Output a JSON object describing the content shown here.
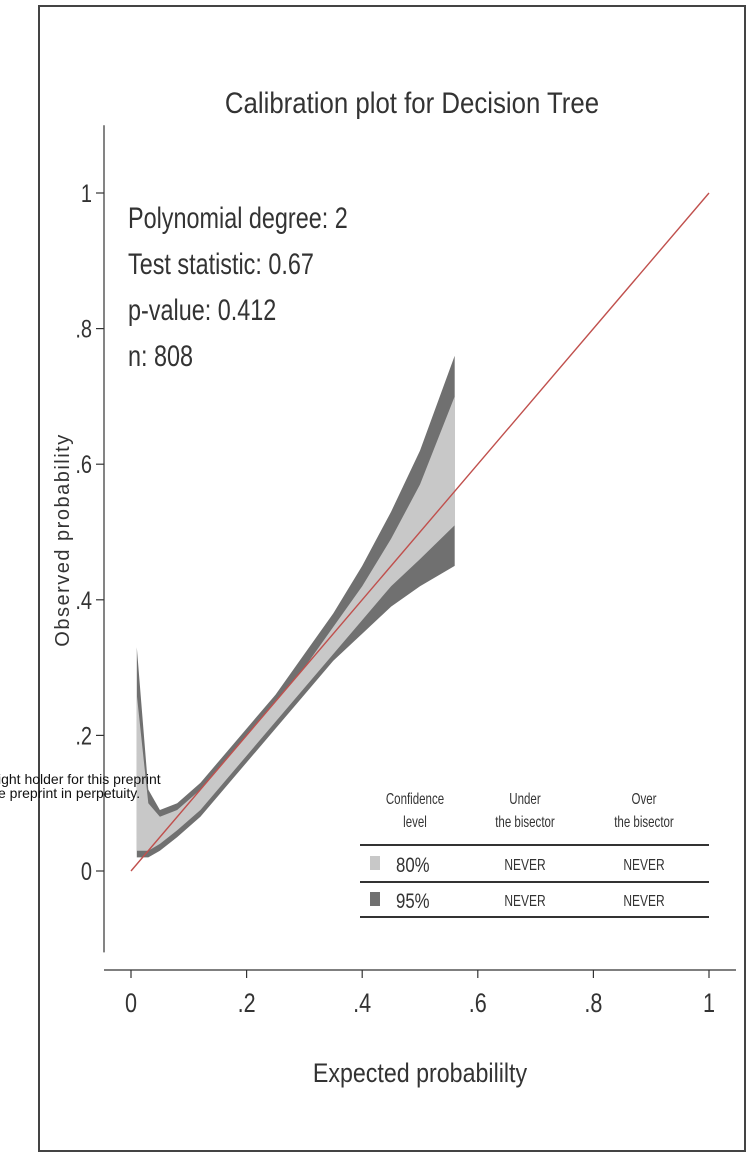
{
  "watermark": [
    "ight holder for this preprint",
    "e preprint in perpetuity."
  ],
  "chart_data": {
    "type": "line",
    "title": "Calibration plot for Decision Tree",
    "xlabel": "Expected probabililty",
    "ylabel": "Observed probability",
    "xlim": [
      0,
      1
    ],
    "ylim": [
      -0.12,
      1.1
    ],
    "x_ticks": [
      0,
      0.2,
      0.4,
      0.6,
      0.8,
      1
    ],
    "x_tick_labels": [
      "0",
      ".2",
      ".4",
      ".6",
      ".8",
      "1"
    ],
    "y_ticks": [
      0,
      0.2,
      0.4,
      0.6,
      0.8,
      1
    ],
    "y_tick_labels": [
      "0",
      ".2",
      ".4",
      ".6",
      ".8",
      "1"
    ],
    "stats_text": [
      "Polynomial degree: 2",
      "Test statistic: 0.67",
      "p-value: 0.412",
      "n: 808"
    ],
    "bisector": {
      "x": [
        0,
        1
      ],
      "y": [
        0,
        1
      ],
      "color": "#c0504d"
    },
    "bands": [
      {
        "name": "95%",
        "color": "#707070",
        "x": [
          0.01,
          0.03,
          0.05,
          0.08,
          0.12,
          0.16,
          0.2,
          0.25,
          0.3,
          0.35,
          0.4,
          0.45,
          0.5,
          0.56
        ],
        "upper": [
          0.33,
          0.12,
          0.09,
          0.1,
          0.13,
          0.17,
          0.21,
          0.26,
          0.32,
          0.38,
          0.45,
          0.53,
          0.62,
          0.76
        ],
        "lower": [
          0.02,
          0.02,
          0.03,
          0.05,
          0.08,
          0.12,
          0.16,
          0.21,
          0.26,
          0.31,
          0.35,
          0.39,
          0.42,
          0.45
        ]
      },
      {
        "name": "80%",
        "color": "#c8c8c8",
        "x": [
          0.01,
          0.03,
          0.05,
          0.08,
          0.12,
          0.16,
          0.2,
          0.25,
          0.3,
          0.35,
          0.4,
          0.45,
          0.5,
          0.56
        ],
        "upper": [
          0.26,
          0.1,
          0.08,
          0.09,
          0.12,
          0.16,
          0.2,
          0.25,
          0.3,
          0.36,
          0.42,
          0.49,
          0.57,
          0.7
        ],
        "lower": [
          0.03,
          0.03,
          0.04,
          0.06,
          0.09,
          0.13,
          0.17,
          0.22,
          0.27,
          0.32,
          0.37,
          0.42,
          0.46,
          0.51
        ]
      }
    ],
    "legend_table": {
      "headers": [
        [
          "Confidence",
          "level"
        ],
        [
          "Under",
          "the bisector"
        ],
        [
          "Over",
          "the bisector"
        ]
      ],
      "rows": [
        {
          "level": "80%",
          "under": "NEVER",
          "over": "NEVER",
          "swatch": "#c8c8c8"
        },
        {
          "level": "95%",
          "under": "NEVER",
          "over": "NEVER",
          "swatch": "#707070"
        }
      ],
      "placement": "bottom-right"
    }
  }
}
